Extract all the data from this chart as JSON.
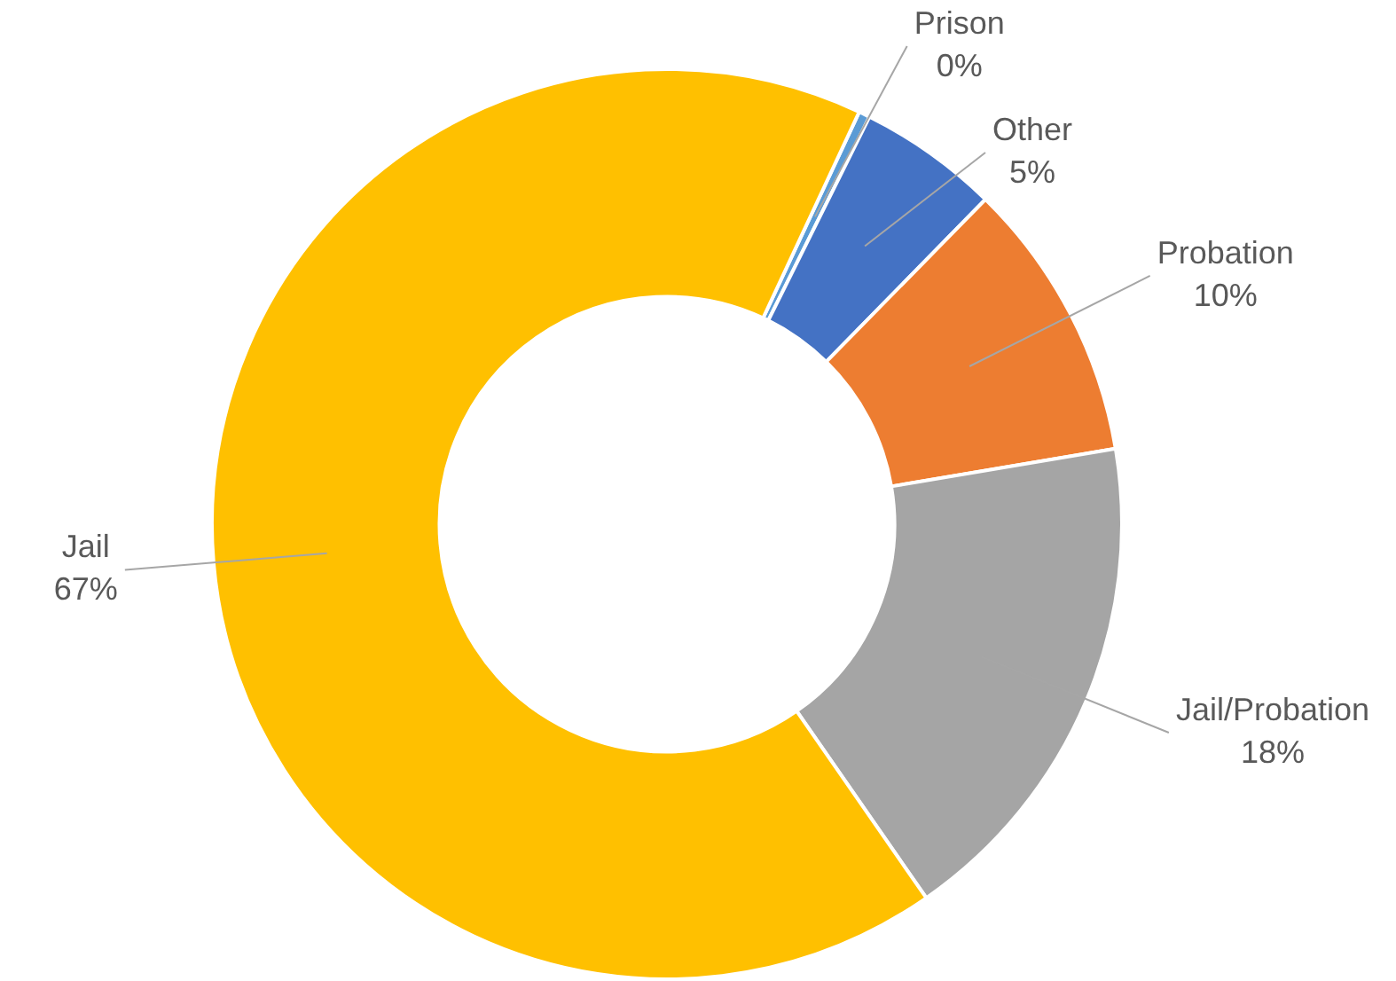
{
  "chart_data": {
    "type": "donut",
    "categories": [
      "Prison",
      "Other",
      "Probation",
      "Jail/Probation",
      "Jail"
    ],
    "values": [
      0.4,
      5,
      10,
      18,
      66.6
    ],
    "value_labels": [
      "0%",
      "5%",
      "10%",
      "18%",
      "67%"
    ],
    "colors": [
      "#5b9bd5",
      "#4472c4",
      "#ed7d31",
      "#a5a5a5",
      "#ffc000"
    ],
    "legend": false
  }
}
